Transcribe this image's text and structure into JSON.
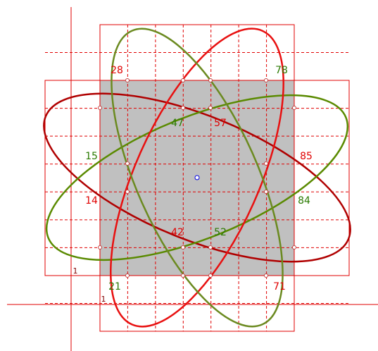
{
  "labels": [
    {
      "text": "28",
      "color": "#e00000"
    },
    {
      "text": "78",
      "color": "#2a7a00"
    },
    {
      "text": "47",
      "color": "#2a7a00"
    },
    {
      "text": "57",
      "color": "#e00000"
    },
    {
      "text": "15",
      "color": "#2a7a00"
    },
    {
      "text": "85",
      "color": "#e00000"
    },
    {
      "text": "14",
      "color": "#e00000"
    },
    {
      "text": "84",
      "color": "#2a7a00"
    },
    {
      "text": "42",
      "color": "#e00000"
    },
    {
      "text": "52",
      "color": "#2a7a00"
    },
    {
      "text": "21",
      "color": "#2a7a00"
    },
    {
      "text": "71",
      "color": "#e00000"
    }
  ],
  "axis_marks": [
    "1",
    "1"
  ]
}
